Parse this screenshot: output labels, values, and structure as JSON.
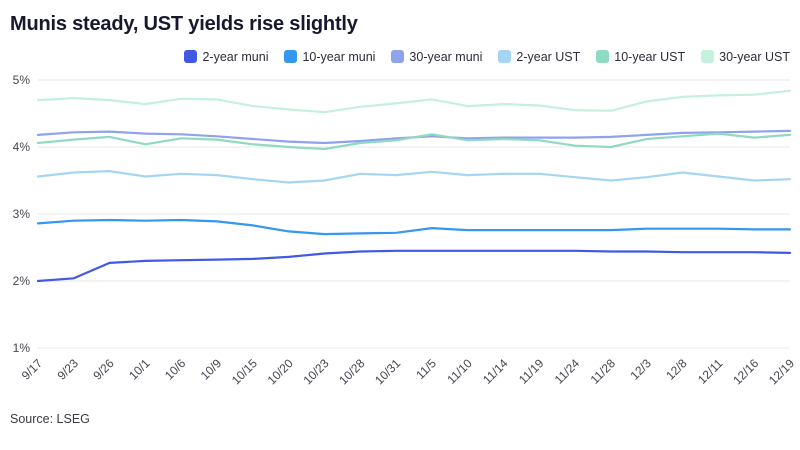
{
  "title": "Munis steady, UST yields rise slightly",
  "source": "Source: LSEG",
  "chart_data": {
    "type": "line",
    "title": "Munis steady, UST yields rise slightly",
    "xlabel": "",
    "ylabel": "",
    "ylim": [
      1,
      5
    ],
    "y_ticks": [
      1,
      2,
      3,
      4,
      5
    ],
    "y_tick_labels": [
      "1%",
      "2%",
      "3%",
      "4%",
      "5%"
    ],
    "grid": "horizontal",
    "legend_position": "top",
    "categories": [
      "9/17",
      "9/23",
      "9/26",
      "10/1",
      "10/6",
      "10/9",
      "10/15",
      "10/20",
      "10/23",
      "10/28",
      "10/31",
      "11/5",
      "11/10",
      "11/14",
      "11/19",
      "11/24",
      "11/28",
      "12/3",
      "12/8",
      "12/11",
      "12/16",
      "12/19"
    ],
    "series": [
      {
        "name": "2-year muni",
        "color": "#4159e4",
        "values": [
          2.0,
          2.04,
          2.27,
          2.3,
          2.31,
          2.32,
          2.33,
          2.36,
          2.41,
          2.44,
          2.45,
          2.45,
          2.45,
          2.45,
          2.45,
          2.45,
          2.44,
          2.44,
          2.43,
          2.43,
          2.43,
          2.42
        ]
      },
      {
        "name": "10-year muni",
        "color": "#3597ef",
        "values": [
          2.86,
          2.9,
          2.91,
          2.9,
          2.91,
          2.89,
          2.83,
          2.74,
          2.7,
          2.71,
          2.72,
          2.79,
          2.76,
          2.76,
          2.76,
          2.76,
          2.76,
          2.78,
          2.78,
          2.78,
          2.77,
          2.77
        ]
      },
      {
        "name": "30-year muni",
        "color": "#8fa3ec",
        "values": [
          4.18,
          4.22,
          4.23,
          4.2,
          4.19,
          4.16,
          4.12,
          4.08,
          4.06,
          4.09,
          4.13,
          4.16,
          4.13,
          4.14,
          4.14,
          4.14,
          4.15,
          4.18,
          4.21,
          4.22,
          4.23,
          4.24
        ]
      },
      {
        "name": "2-year UST",
        "color": "#a5d5f3",
        "values": [
          3.56,
          3.62,
          3.64,
          3.56,
          3.6,
          3.58,
          3.52,
          3.47,
          3.5,
          3.6,
          3.58,
          3.63,
          3.58,
          3.6,
          3.6,
          3.55,
          3.5,
          3.55,
          3.62,
          3.56,
          3.5,
          3.52
        ]
      },
      {
        "name": "10-year UST",
        "color": "#90d9c3",
        "values": [
          4.06,
          4.11,
          4.15,
          4.04,
          4.13,
          4.11,
          4.04,
          4.0,
          3.97,
          4.06,
          4.1,
          4.19,
          4.1,
          4.12,
          4.1,
          4.02,
          4.0,
          4.12,
          4.16,
          4.2,
          4.14,
          4.18
        ]
      },
      {
        "name": "30-year UST",
        "color": "#c4f0dc",
        "values": [
          4.7,
          4.73,
          4.7,
          4.64,
          4.72,
          4.71,
          4.61,
          4.56,
          4.52,
          4.6,
          4.65,
          4.71,
          4.61,
          4.64,
          4.62,
          4.55,
          4.54,
          4.68,
          4.75,
          4.77,
          4.78,
          4.84
        ]
      }
    ]
  }
}
